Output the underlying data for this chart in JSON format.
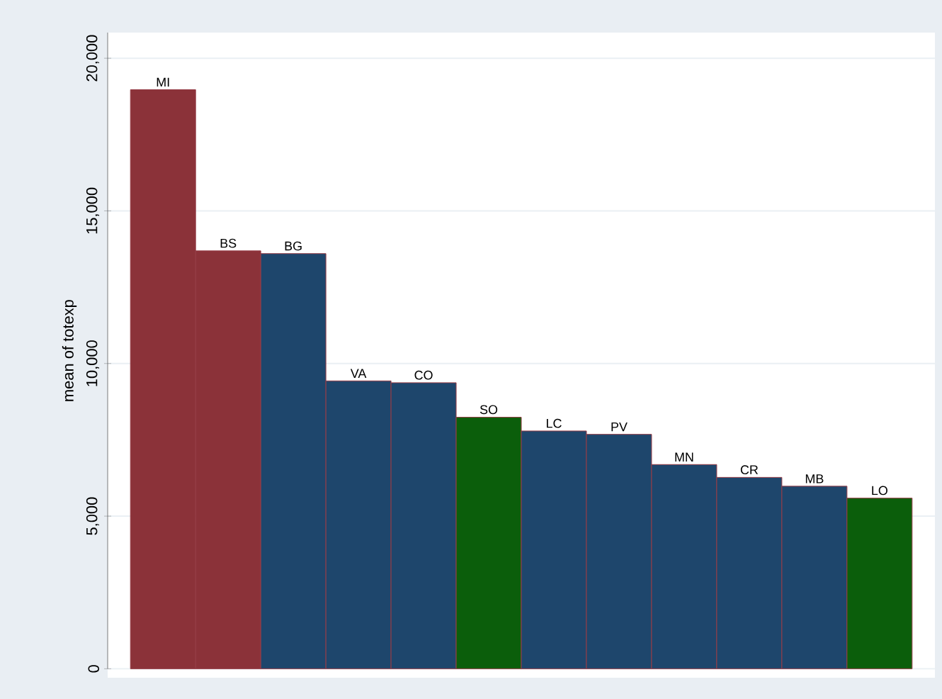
{
  "chart_data": {
    "type": "bar",
    "ylabel": "mean of totexp",
    "categories": [
      "MI",
      "BS",
      "BG",
      "VA",
      "CO",
      "SO",
      "LC",
      "PV",
      "MN",
      "CR",
      "MB",
      "LO"
    ],
    "values": [
      18970,
      13690,
      13600,
      9430,
      9370,
      8240,
      7790,
      7680,
      6690,
      6270,
      5980,
      5590
    ],
    "colors": [
      "#8b3239",
      "#8b3239",
      "#1e466c",
      "#1e466c",
      "#1e466c",
      "#0b5e0b",
      "#1e466c",
      "#1e466c",
      "#1e466c",
      "#1e466c",
      "#1e466c",
      "#0b5e0b"
    ],
    "ylim": [
      0,
      20840
    ],
    "yticks": [
      0,
      {
        "value": 5000,
        "label": "5,000"
      },
      {
        "value": 10000,
        "label": "10,000"
      },
      {
        "value": 15000,
        "label": "15,000"
      },
      {
        "value": 20000,
        "label": "20,000"
      }
    ],
    "grid": "y"
  }
}
